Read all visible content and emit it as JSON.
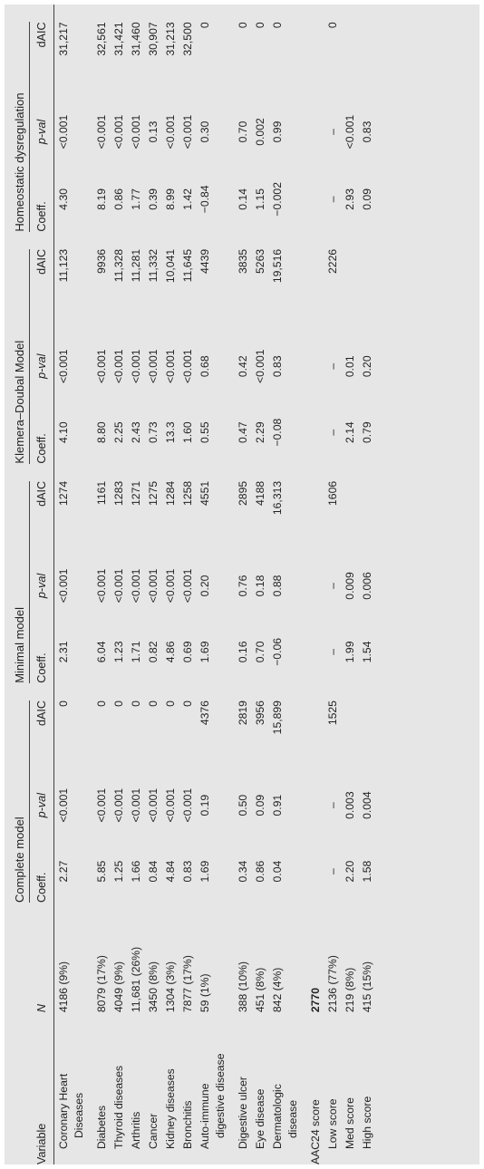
{
  "table": {
    "group_headers": {
      "complete": "Complete model",
      "minimal": "Minimal model",
      "kd": "Klemera–Doubal Model",
      "hd": "Homeostatic dysregulation"
    },
    "col_headers": {
      "variable": "Variable",
      "n": "N",
      "coeff": "Coeff.",
      "pval": "p-val",
      "daic": "dAIC"
    },
    "rows": [
      {
        "var1": "Coronary Heart",
        "var2": "Diseases",
        "n": "4186 (9%)",
        "c1": "2.27",
        "p1": "<0.001",
        "d1": "0",
        "c2": "2.31",
        "p2": "<0.001",
        "d2": "1274",
        "c3": "4.10",
        "p3": "<0.001",
        "d3": "11,123",
        "c4": "4.30",
        "p4": "<0.001",
        "d4": "31,217"
      },
      {
        "var1": "Diabetes",
        "n": "8079 (17%)",
        "c1": "5.85",
        "p1": "<0.001",
        "d1": "0",
        "c2": "6.04",
        "p2": "<0.001",
        "d2": "1161",
        "c3": "8.80",
        "p3": "<0.001",
        "d3": "9936",
        "c4": "8.19",
        "p4": "<0.001",
        "d4": "32,561"
      },
      {
        "var1": "Thyroid diseases",
        "n": "4049 (9%)",
        "c1": "1.25",
        "p1": "<0.001",
        "d1": "0",
        "c2": "1.23",
        "p2": "<0.001",
        "d2": "1283",
        "c3": "2.25",
        "p3": "<0.001",
        "d3": "11,328",
        "c4": "0.86",
        "p4": "<0.001",
        "d4": "31,421"
      },
      {
        "var1": "Arthritis",
        "n": "11,681 (26%)",
        "c1": "1.66",
        "p1": "<0.001",
        "d1": "0",
        "c2": "1.71",
        "p2": "<0.001",
        "d2": "1271",
        "c3": "2.43",
        "p3": "<0.001",
        "d3": "11,281",
        "c4": "1.77",
        "p4": "<0.001",
        "d4": "31,460"
      },
      {
        "var1": "Cancer",
        "n": "3450 (8%)",
        "c1": "0.84",
        "p1": "<0.001",
        "d1": "0",
        "c2": "0.82",
        "p2": "<0.001",
        "d2": "1275",
        "c3": "0.73",
        "p3": "<0.001",
        "d3": "11,332",
        "c4": "0.39",
        "p4": "0.13",
        "d4": "30,907"
      },
      {
        "var1": "Kidney diseases",
        "n": "1304 (3%)",
        "c1": "4.84",
        "p1": "<0.001",
        "d1": "0",
        "c2": "4.86",
        "p2": "<0.001",
        "d2": "1284",
        "c3": "13.3",
        "p3": "<0.001",
        "d3": "10,041",
        "c4": "8.99",
        "p4": "<0.001",
        "d4": "31,213"
      },
      {
        "var1": "Bronchitis",
        "n": "7877 (17%)",
        "c1": "0.83",
        "p1": "<0.001",
        "d1": "0",
        "c2": "0.69",
        "p2": "<0.001",
        "d2": "1258",
        "c3": "1.60",
        "p3": "<0.001",
        "d3": "11,645",
        "c4": "1.42",
        "p4": "<0.001",
        "d4": "32,500"
      },
      {
        "var1": "Auto-immune",
        "var2": "digestive disease",
        "n": "59 (1%)",
        "c1": "1.69",
        "p1": "0.19",
        "d1": "4376",
        "c2": "1.69",
        "p2": "0.20",
        "d2": "4551",
        "c3": "0.55",
        "p3": "0.68",
        "d3": "4439",
        "c4": "−0.84",
        "p4": "0.30",
        "d4": "0"
      },
      {
        "var1": "Digestive ulcer",
        "n": "388 (10%)",
        "c1": "0.34",
        "p1": "0.50",
        "d1": "2819",
        "c2": "0.16",
        "p2": "0.76",
        "d2": "2895",
        "c3": "0.47",
        "p3": "0.42",
        "d3": "3835",
        "c4": "0.14",
        "p4": "0.70",
        "d4": "0"
      },
      {
        "var1": "Eye disease",
        "n": "451 (8%)",
        "c1": "0.86",
        "p1": "0.09",
        "d1": "3956",
        "c2": "0.70",
        "p2": "0.18",
        "d2": "4188",
        "c3": "2.29",
        "p3": "<0.001",
        "d3": "5263",
        "c4": "1.15",
        "p4": "0.002",
        "d4": "0"
      },
      {
        "var1": "Dermatologic",
        "var2": "disease",
        "n": "842 (4%)",
        "c1": "0.04",
        "p1": "0.91",
        "d1": "15,899",
        "c2": "−0.06",
        "p2": "0.88",
        "d2": "16,313",
        "c3": "−0.08",
        "p3": "0.83",
        "d3": "19,516",
        "c4": "−0.002",
        "p4": "0.99",
        "d4": "0"
      },
      {
        "var1": "AAC24 score",
        "n": "2770",
        "section": true
      },
      {
        "var1": "Low score",
        "n": "2136 (77%)",
        "c1": "–",
        "p1": "–",
        "d1": "1525",
        "c2": "–",
        "p2": "–",
        "d2": "1606",
        "c3": "–",
        "p3": "–",
        "d3": "2226",
        "c4": "–",
        "p4": "–",
        "d4": "0"
      },
      {
        "var1": "Med score",
        "n": "219 (8%)",
        "c1": "2.20",
        "p1": "0.003",
        "d1": "",
        "c2": "1.99",
        "p2": "0.009",
        "d2": "",
        "c3": "2.14",
        "p3": "0.01",
        "d3": "",
        "c4": "2.93",
        "p4": "<0.001",
        "d4": ""
      },
      {
        "var1": "High score",
        "n": "415 (15%)",
        "c1": "1.58",
        "p1": "0.004",
        "d1": "",
        "c2": "1.54",
        "p2": "0.006",
        "d2": "",
        "c3": "0.79",
        "p3": "0.20",
        "d3": "",
        "c4": "0.09",
        "p4": "0.83",
        "d4": ""
      }
    ]
  }
}
